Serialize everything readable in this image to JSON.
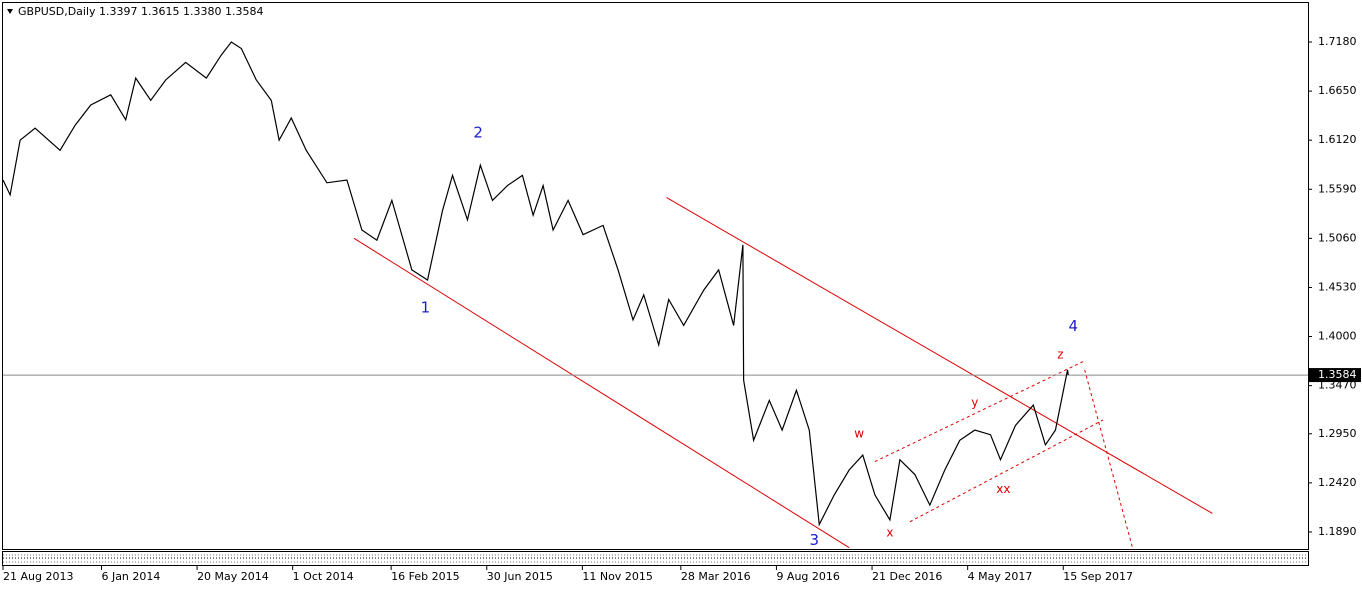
{
  "chart_data": {
    "type": "line",
    "title": "GBPUSD,Daily  1.3397 1.3615 1.3380 1.3584",
    "x": [
      "21 Aug 2013",
      "31 Aug 2013",
      "14 Sep 2013",
      "5 Oct 2013",
      "9 Nov 2013",
      "30 Nov 2013",
      "22 Dec 2013",
      "19 Jan 2014",
      "9 Feb 2014",
      "23 Feb 2014",
      "16 Mar 2014",
      "6 Apr 2014",
      "4 May 2014",
      "2 Jun 2014",
      "23 Jun 2014",
      "7 Jul 2014",
      "21 Jul 2014",
      "11 Aug 2014",
      "1 Sep 2014",
      "12 Sep 2014",
      "29 Sep 2014",
      "20 Oct 2014",
      "18 Nov 2014",
      "16 Dec 2014",
      "6 Jan 2015",
      "27 Jan 2015",
      "17 Feb 2015",
      "17 Mar 2015",
      "8 Apr 2015",
      "29 Apr 2015",
      "13 May 2015",
      "3 Jun 2015",
      "21 Jun 2015",
      "8 Jul 2015",
      "29 Jul 2015",
      "19 Aug 2015",
      "3 Sep 2015",
      "17 Sep 2015",
      "1 Oct 2015",
      "22 Oct 2015",
      "12 Nov 2015",
      "10 Dec 2015",
      "31 Dec 2015",
      "21 Jan 2016",
      "5 Feb 2016",
      "26 Feb 2016",
      "11 Mar 2016",
      "1 Apr 2016",
      "29 Apr 2016",
      "20 May 2016",
      "10 Jun 2016",
      "23 Jun 2016",
      "24 Jun 2016",
      "8 Jul 2016",
      "30 Jul 2016",
      "17 Aug 2016",
      "6 Sep 2016",
      "24 Sep 2016",
      "8 Oct 2016",
      "29 Oct 2016",
      "19 Nov 2016",
      "8 Dec 2016",
      "25 Dec 2016",
      "15 Jan 2017",
      "29 Jan 2017",
      "19 Feb 2017",
      "12 Mar 2017",
      "2 Apr 2017",
      "23 Apr 2017",
      "14 May 2017",
      "5 Jun 2017",
      "19 Jun 2017",
      "10 Jul 2017",
      "4 Aug 2017",
      "21 Aug 2017",
      "4 Sep 2017",
      "21 Sep 2017",
      "22 Sep 2017"
    ],
    "series": [
      {
        "color": "#000000",
        "values": [
          1.569,
          1.553,
          1.612,
          1.625,
          1.601,
          1.628,
          1.65,
          1.661,
          1.634,
          1.679,
          1.655,
          1.677,
          1.696,
          1.679,
          1.704,
          1.718,
          1.711,
          1.677,
          1.655,
          1.612,
          1.636,
          1.601,
          1.566,
          1.569,
          1.515,
          1.504,
          1.547,
          1.472,
          1.461,
          1.536,
          1.574,
          1.526,
          1.585,
          1.547,
          1.563,
          1.574,
          1.531,
          1.563,
          1.515,
          1.547,
          1.51,
          1.52,
          1.472,
          1.418,
          1.445,
          1.391,
          1.44,
          1.412,
          1.45,
          1.472,
          1.412,
          1.499,
          1.353,
          1.288,
          1.331,
          1.299,
          1.342,
          1.299,
          1.197,
          1.229,
          1.256,
          1.272,
          1.229,
          1.202,
          1.267,
          1.251,
          1.218,
          1.256,
          1.288,
          1.299,
          1.294,
          1.267,
          1.304,
          1.326,
          1.283,
          1.299,
          1.364,
          1.3584
        ]
      }
    ],
    "xlim": [
      "21 Aug 2013",
      "24 Aug 2018"
    ],
    "xticks": [
      "21 Aug 2013",
      "6 Jan 2014",
      "20 May 2014",
      "1 Oct 2014",
      "16 Feb 2015",
      "30 Jun 2015",
      "11 Nov 2015",
      "28 Mar 2016",
      "9 Aug 2016",
      "21 Dec 2016",
      "4 May 2017",
      "15 Sep 2017"
    ],
    "ylim": [
      1.1706,
      1.7612
    ],
    "yticks": [
      {
        "value": 1.718,
        "label": "1.7180"
      },
      {
        "value": 1.665,
        "label": "1.6650"
      },
      {
        "value": 1.612,
        "label": "1.6120"
      },
      {
        "value": 1.559,
        "label": "1.5590"
      },
      {
        "value": 1.506,
        "label": "1.5060"
      },
      {
        "value": 1.453,
        "label": "1.4530"
      },
      {
        "value": 1.4,
        "label": "1.4000"
      },
      {
        "value": 1.347,
        "label": "1.3470"
      },
      {
        "value": 1.295,
        "label": "1.2950"
      },
      {
        "value": 1.242,
        "label": "1.2420"
      },
      {
        "value": 1.189,
        "label": "1.1890"
      }
    ],
    "last_price": 1.3584,
    "trendlines": [
      {
        "color": "#e00000",
        "dashed": false,
        "x": [
          "26 Dec 2014",
          "19 Nov 2016"
        ],
        "y": [
          1.506,
          1.172
        ]
      },
      {
        "color": "#e00000",
        "dashed": false,
        "x": [
          "8 Mar 2016",
          "12 Apr 2018"
        ],
        "y": [
          1.55,
          1.209
        ]
      },
      {
        "color": "#e00000",
        "dashed": true,
        "x": [
          "25 Dec 2016",
          "13 Oct 2017"
        ],
        "y": [
          1.265,
          1.373
        ]
      },
      {
        "color": "#e00000",
        "dashed": true,
        "x": [
          "12 Feb 2017",
          "10 Nov 2017"
        ],
        "y": [
          1.2,
          1.31
        ]
      },
      {
        "color": "#e00000",
        "dashed": true,
        "x": [
          "15 Oct 2017",
          "21 Dec 2017"
        ],
        "y": [
          1.364,
          1.172
        ]
      }
    ],
    "annotations": [
      {
        "text": "1",
        "x": "5 Apr 2015",
        "y": 1.431,
        "color": "#1c1ccc"
      },
      {
        "text": "2",
        "x": "18 Jun 2015",
        "y": 1.62,
        "color": "#1c1ccc"
      },
      {
        "text": "3",
        "x": "1 Oct 2016",
        "y": 1.18,
        "color": "#1c1ccc"
      },
      {
        "text": "4",
        "x": "29 Sep 2017",
        "y": 1.411,
        "color": "#1c1ccc"
      },
      {
        "text": "w",
        "x": "3 Dec 2016",
        "y": 1.295,
        "color": "#e00000"
      },
      {
        "text": "x",
        "x": "15 Jan 2017",
        "y": 1.188,
        "color": "#e00000"
      },
      {
        "text": "y",
        "x": "14 May 2017",
        "y": 1.328,
        "color": "#e00000"
      },
      {
        "text": "xx",
        "x": "23 Jun 2017",
        "y": 1.235,
        "color": "#e00000"
      },
      {
        "text": "z",
        "x": "11 Sep 2017",
        "y": 1.38,
        "color": "#e00000"
      }
    ]
  }
}
